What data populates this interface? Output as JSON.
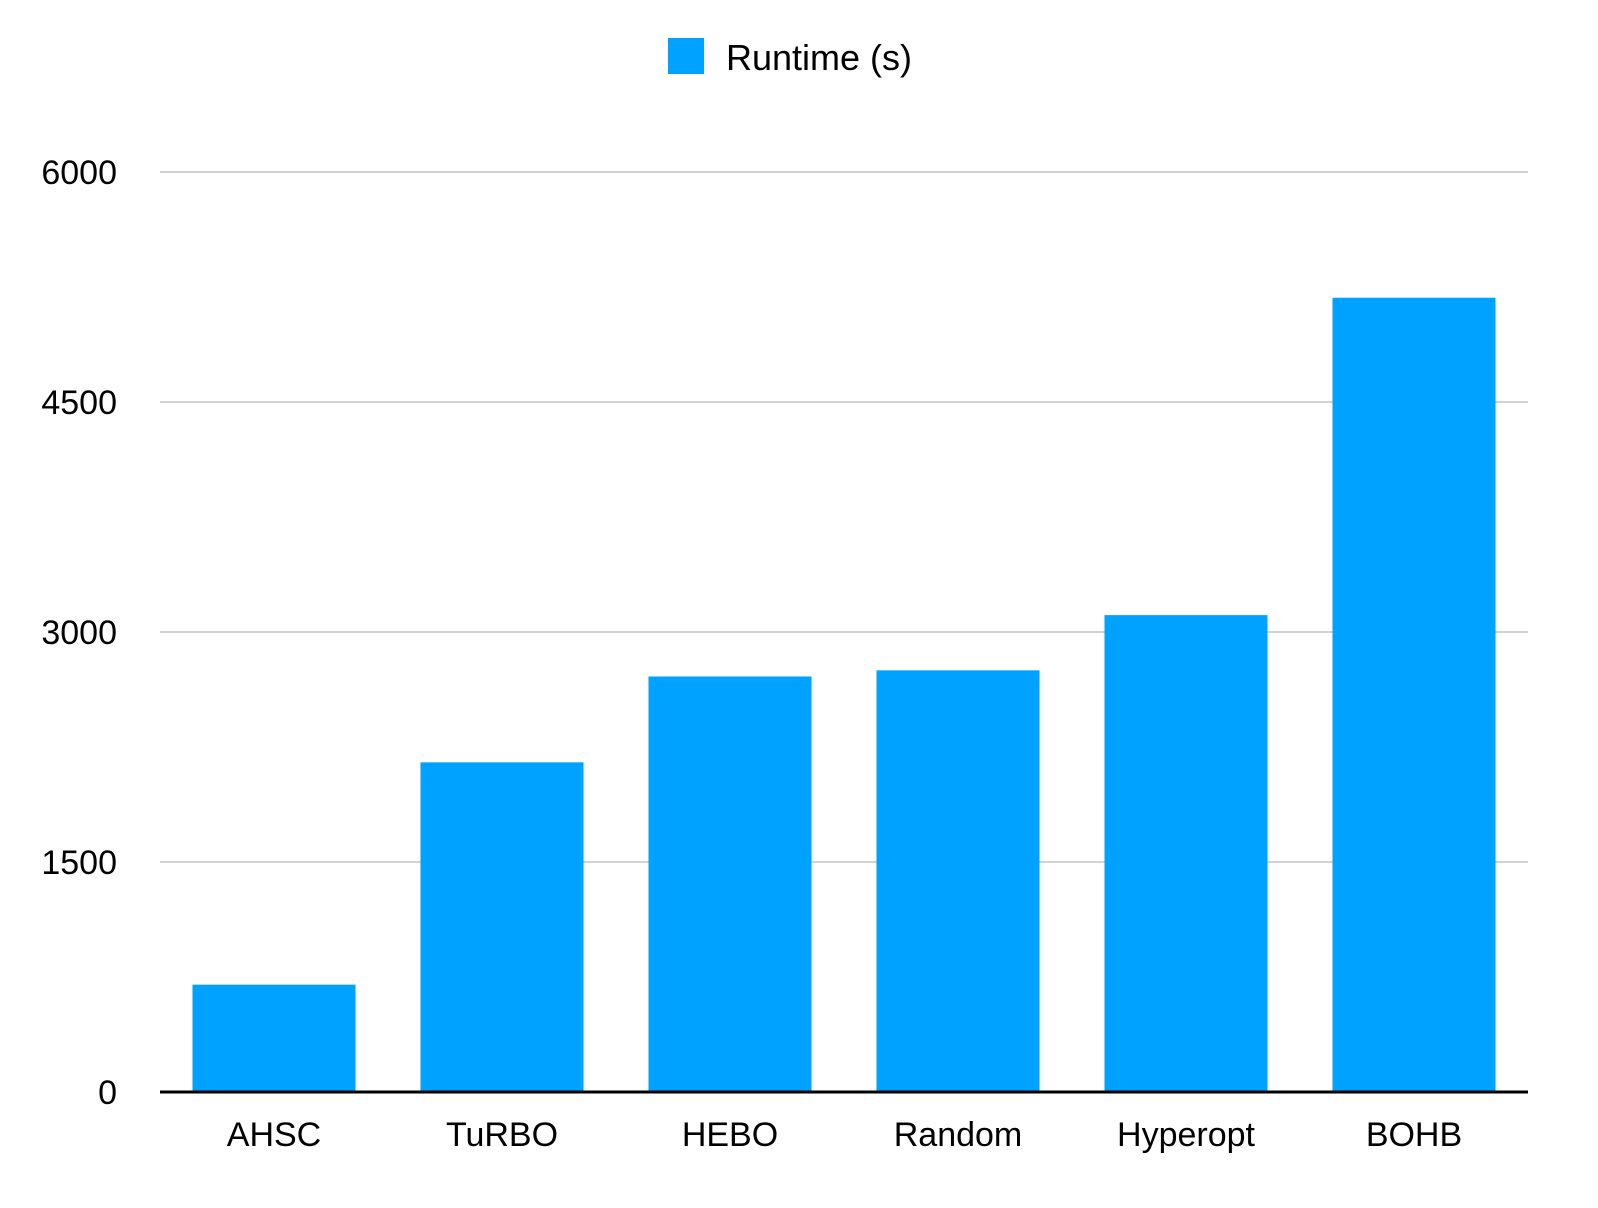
{
  "chart_data": {
    "type": "bar",
    "categories": [
      "AHSC",
      "TuRBO",
      "HEBO",
      "Random",
      "Hyperopt",
      "BOHB"
    ],
    "series": [
      {
        "name": "Runtime (s)",
        "color": "#00a2ff",
        "values": [
          700,
          2150,
          2710,
          2750,
          3110,
          5180
        ]
      }
    ],
    "ylim": [
      0,
      6000
    ],
    "yticks": [
      "0",
      "1500",
      "3000",
      "4500",
      "6000"
    ],
    "grid": true,
    "legend_position": "top-center"
  }
}
